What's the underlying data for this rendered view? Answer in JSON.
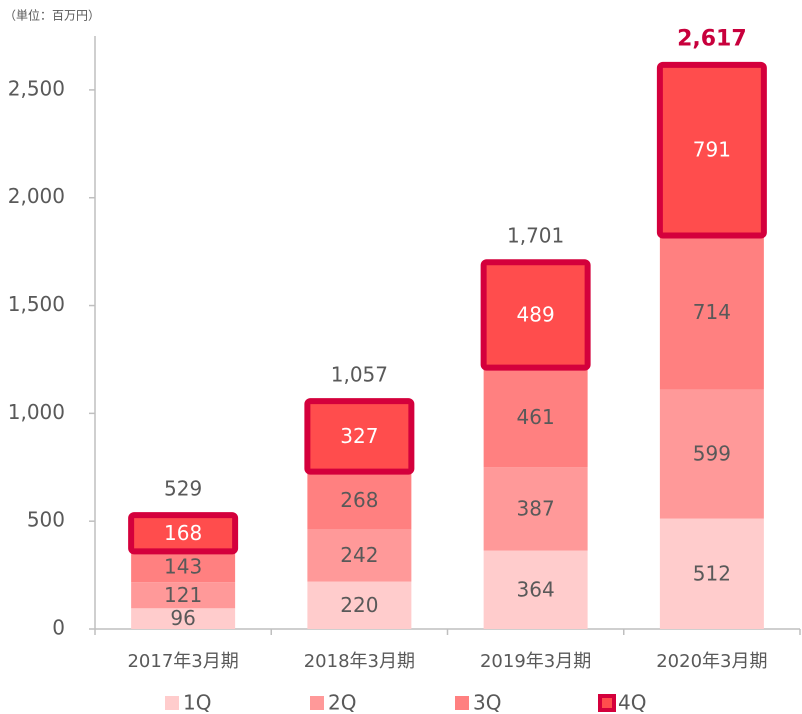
{
  "chart_data": {
    "type": "stacked_bar",
    "unit_note": "（単位：百万円）",
    "categories": [
      "2017年3月期",
      "2018年3月期",
      "2019年3月期",
      "2020年3月期"
    ],
    "series": [
      {
        "name": "1Q",
        "color": "#ffcccc",
        "label_color": "#595959",
        "values": [
          96,
          220,
          364,
          512
        ]
      },
      {
        "name": "2Q",
        "color": "#ff9999",
        "label_color": "#595959",
        "values": [
          121,
          242,
          387,
          599
        ]
      },
      {
        "name": "3Q",
        "color": "#ff8080",
        "label_color": "#595959",
        "values": [
          143,
          268,
          461,
          714
        ]
      },
      {
        "name": "4Q",
        "color": "#ff4d4d",
        "border": "#d4003c",
        "label_color": "#ffffff",
        "values": [
          168,
          327,
          489,
          791
        ]
      }
    ],
    "totals": [
      529,
      1057,
      1701,
      2617
    ],
    "total_labels": [
      "529",
      "1,057",
      "1,701",
      "2,617"
    ],
    "total_colors": [
      "#595959",
      "#595959",
      "#595959",
      "#c8003c"
    ],
    "ylim": [
      0,
      2750
    ],
    "yticks": [
      0,
      500,
      {
        "value": 1000,
        "label": "1,000"
      },
      {
        "value": 1500,
        "label": "1,500"
      },
      {
        "value": 2000,
        "label": "2,000"
      },
      {
        "value": 2500,
        "label": "2,500"
      }
    ]
  }
}
